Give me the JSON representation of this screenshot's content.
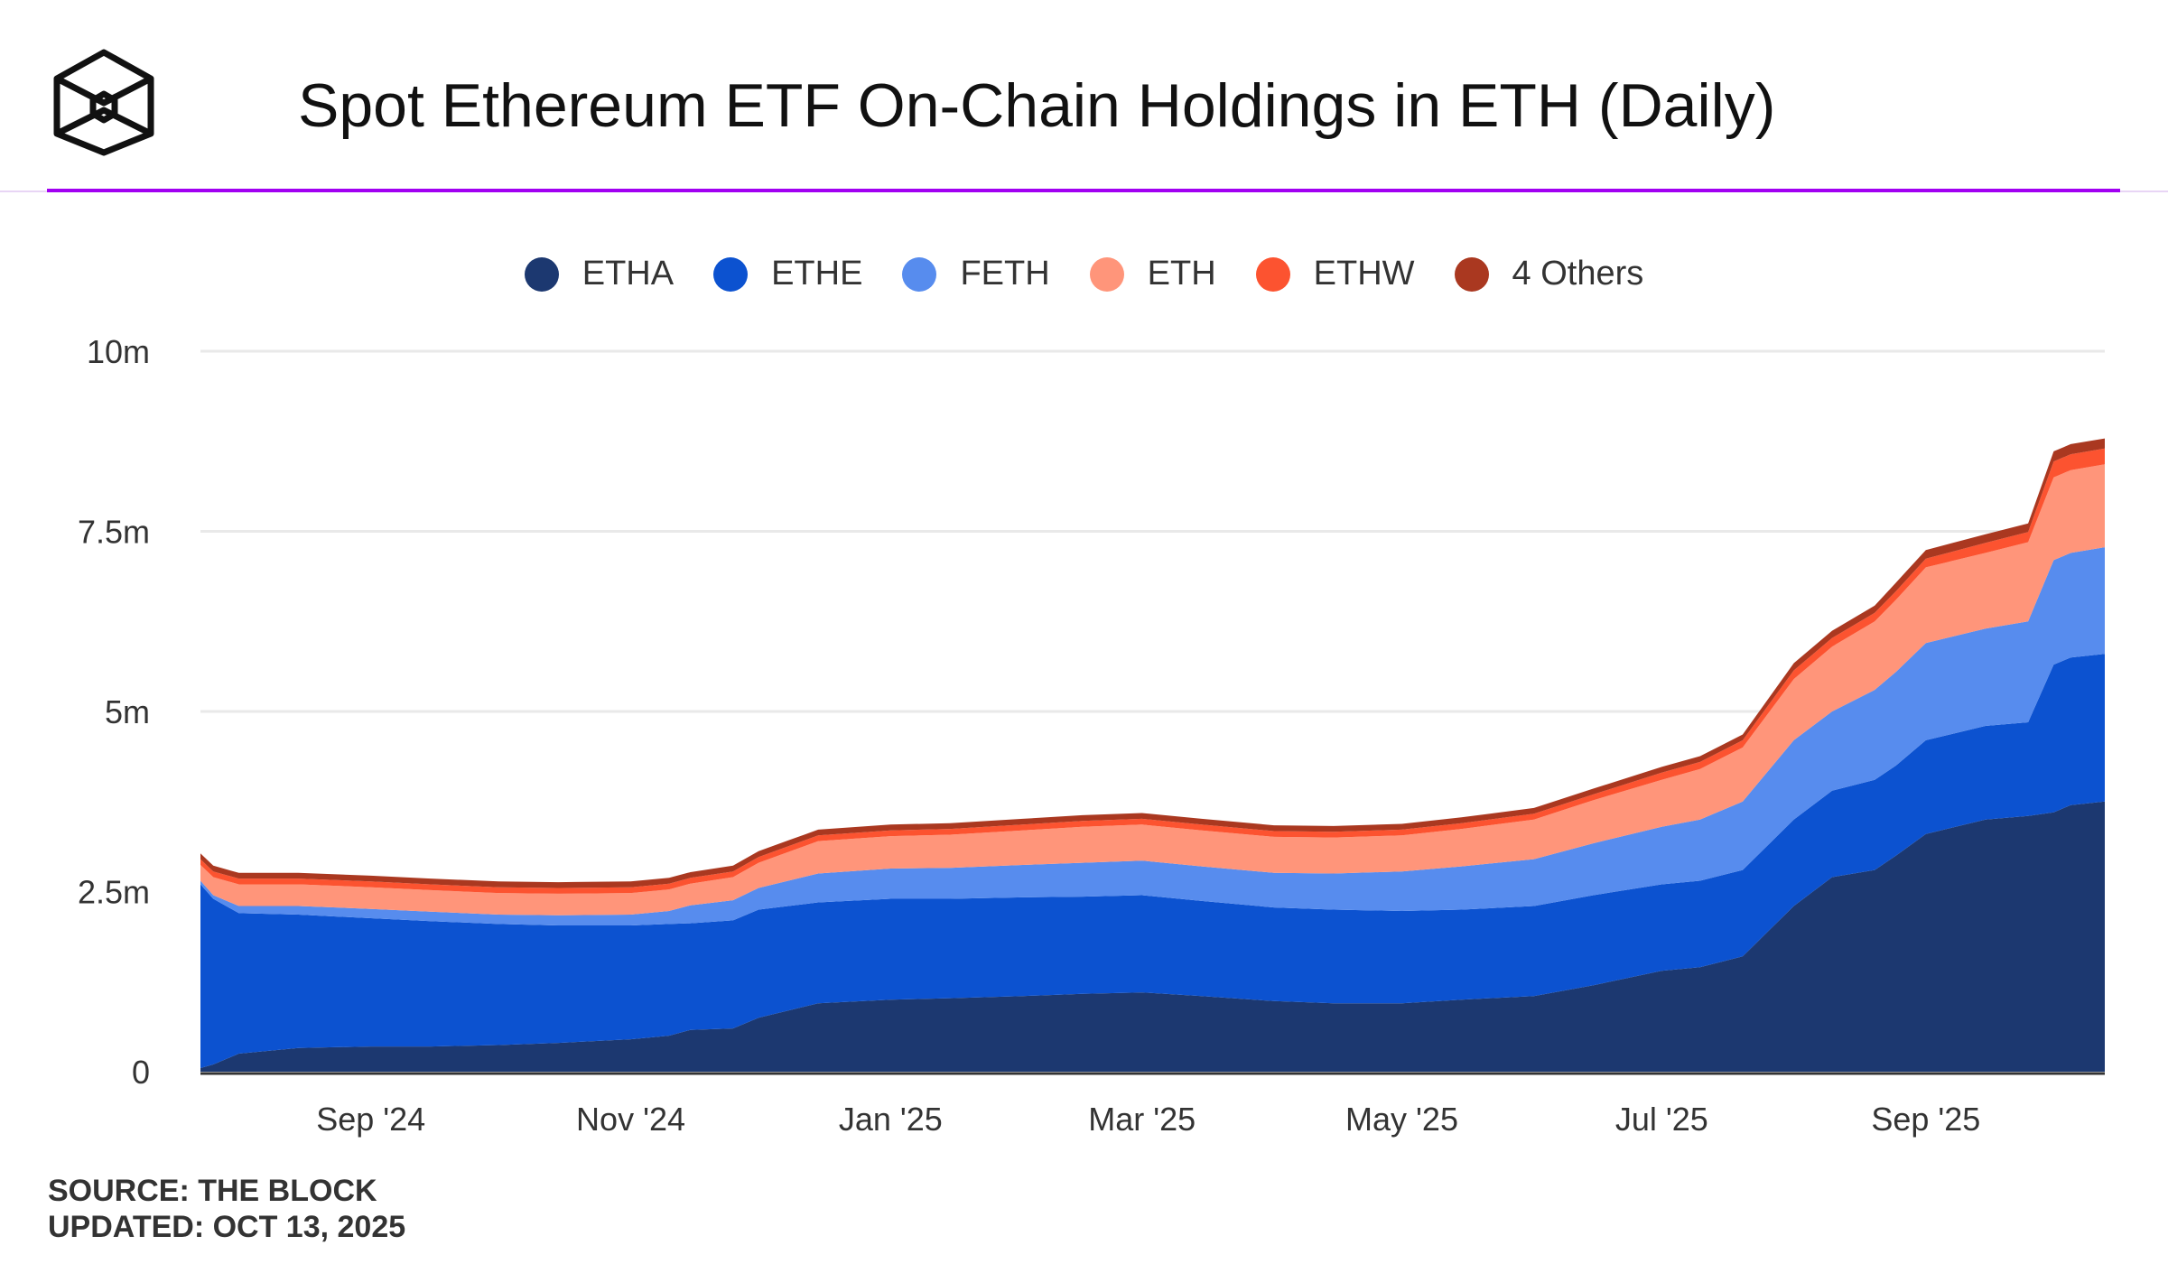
{
  "header": {
    "logo_icon": "the-block-cube-logo",
    "title": "Spot Ethereum ETF On-Chain Holdings in ETH (Daily)"
  },
  "footer": {
    "source": "SOURCE: THE BLOCK",
    "updated": "UPDATED: OCT 13, 2025"
  },
  "chart_data": {
    "type": "area",
    "stacked": true,
    "title": "Spot Ethereum ETF On-Chain Holdings in ETH (Daily)",
    "xlabel": "",
    "ylabel": "",
    "ylim": [
      0,
      10000000
    ],
    "yticks": [
      0,
      2500000,
      5000000,
      7500000,
      10000000
    ],
    "ytick_labels": [
      "0",
      "2.5m",
      "5m",
      "7.5m",
      "10m"
    ],
    "xticks": [
      "2024-09-01",
      "2024-11-01",
      "2025-01-01",
      "2025-03-01",
      "2025-05-01",
      "2025-07-01",
      "2025-09-01"
    ],
    "xtick_labels": [
      "Sep '24",
      "Nov '24",
      "Jan '25",
      "Mar '25",
      "May '25",
      "Jul '25",
      "Sep '25"
    ],
    "xlim": [
      "2024-07-23",
      "2025-10-13"
    ],
    "grid": true,
    "legend_position": "top-center",
    "x": [
      "2024-07-23",
      "2024-07-26",
      "2024-08-01",
      "2024-08-15",
      "2024-09-01",
      "2024-09-15",
      "2024-10-01",
      "2024-10-15",
      "2024-11-01",
      "2024-11-10",
      "2024-11-15",
      "2024-11-25",
      "2024-12-01",
      "2024-12-08",
      "2024-12-15",
      "2025-01-01",
      "2025-01-15",
      "2025-02-01",
      "2025-02-15",
      "2025-03-01",
      "2025-03-15",
      "2025-04-01",
      "2025-04-15",
      "2025-05-01",
      "2025-05-15",
      "2025-06-01",
      "2025-06-15",
      "2025-07-01",
      "2025-07-10",
      "2025-07-20",
      "2025-08-01",
      "2025-08-10",
      "2025-08-20",
      "2025-08-25",
      "2025-09-01",
      "2025-09-15",
      "2025-09-25",
      "2025-10-01",
      "2025-10-05",
      "2025-10-13"
    ],
    "series": [
      {
        "name": "ETHA",
        "color": "#1c3870",
        "values": [
          0.05,
          0.1,
          0.25,
          0.33,
          0.35,
          0.35,
          0.37,
          0.4,
          0.45,
          0.5,
          0.58,
          0.6,
          0.75,
          0.85,
          0.95,
          1.0,
          1.02,
          1.05,
          1.08,
          1.1,
          1.05,
          0.98,
          0.95,
          0.95,
          1.0,
          1.05,
          1.2,
          1.4,
          1.45,
          1.6,
          2.3,
          2.7,
          2.8,
          3.0,
          3.3,
          3.5,
          3.55,
          3.6,
          3.7,
          3.75
        ]
      },
      {
        "name": "ETHE",
        "color": "#0c52d0",
        "values": [
          2.55,
          2.3,
          1.95,
          1.85,
          1.78,
          1.74,
          1.68,
          1.63,
          1.58,
          1.55,
          1.48,
          1.5,
          1.5,
          1.45,
          1.4,
          1.4,
          1.38,
          1.37,
          1.35,
          1.35,
          1.32,
          1.3,
          1.3,
          1.28,
          1.25,
          1.25,
          1.25,
          1.2,
          1.2,
          1.2,
          1.2,
          1.2,
          1.25,
          1.25,
          1.3,
          1.3,
          1.3,
          2.05,
          2.05,
          2.05
        ]
      },
      {
        "name": "FETH",
        "color": "#578cee",
        "values": [
          0.05,
          0.05,
          0.1,
          0.12,
          0.13,
          0.13,
          0.13,
          0.14,
          0.15,
          0.18,
          0.25,
          0.28,
          0.3,
          0.35,
          0.4,
          0.42,
          0.43,
          0.45,
          0.47,
          0.48,
          0.48,
          0.48,
          0.5,
          0.55,
          0.6,
          0.65,
          0.72,
          0.8,
          0.85,
          0.95,
          1.1,
          1.1,
          1.25,
          1.3,
          1.35,
          1.35,
          1.4,
          1.45,
          1.45,
          1.48
        ]
      },
      {
        "name": "ETH",
        "color": "#ff957a",
        "values": [
          0.22,
          0.25,
          0.3,
          0.3,
          0.3,
          0.3,
          0.3,
          0.3,
          0.3,
          0.3,
          0.3,
          0.32,
          0.35,
          0.4,
          0.45,
          0.45,
          0.46,
          0.48,
          0.5,
          0.5,
          0.5,
          0.5,
          0.5,
          0.5,
          0.52,
          0.55,
          0.6,
          0.65,
          0.7,
          0.75,
          0.85,
          0.9,
          0.95,
          1.0,
          1.05,
          1.05,
          1.1,
          1.15,
          1.15,
          1.15
        ]
      },
      {
        "name": "ETHW",
        "color": "#fc5330",
        "values": [
          0.08,
          0.08,
          0.08,
          0.08,
          0.08,
          0.08,
          0.08,
          0.08,
          0.08,
          0.08,
          0.08,
          0.08,
          0.08,
          0.08,
          0.08,
          0.08,
          0.08,
          0.08,
          0.08,
          0.08,
          0.08,
          0.08,
          0.08,
          0.08,
          0.08,
          0.08,
          0.08,
          0.1,
          0.1,
          0.1,
          0.12,
          0.12,
          0.12,
          0.12,
          0.12,
          0.14,
          0.14,
          0.22,
          0.22,
          0.22
        ]
      },
      {
        "name": "4 Others",
        "color": "#aa3820",
        "values": [
          0.08,
          0.08,
          0.08,
          0.08,
          0.08,
          0.08,
          0.08,
          0.08,
          0.08,
          0.08,
          0.08,
          0.08,
          0.08,
          0.08,
          0.08,
          0.08,
          0.08,
          0.08,
          0.08,
          0.08,
          0.08,
          0.08,
          0.08,
          0.08,
          0.08,
          0.08,
          0.08,
          0.08,
          0.08,
          0.08,
          0.1,
          0.1,
          0.1,
          0.12,
          0.12,
          0.12,
          0.12,
          0.14,
          0.14,
          0.14
        ]
      }
    ],
    "value_unit_multiplier": 1000000
  }
}
